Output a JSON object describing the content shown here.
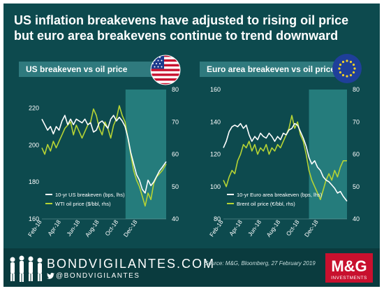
{
  "header": {
    "title_line1": "US inflation breakevens have adjusted to rising oil price",
    "title_line2": "but euro area breakevens continue to trend downward"
  },
  "footer": {
    "brand": "BONDVIGILANTES.COM",
    "handle": "@BONDVIGILANTES",
    "source": "Source: M&G, Bloomberg, 27 February 2019",
    "logo_text": "M&G",
    "logo_subtext": "INVESTMENTS"
  },
  "colors": {
    "background": "#0d4a4e",
    "footer": "#0a3b3e",
    "panel_bar": "#2f7a7e",
    "shade": "#2a8585",
    "breakeven_line": "#ffffff",
    "oil_line": "#b5d334",
    "logo_red": "#c8102e"
  },
  "icons": {
    "left_flag": "us-flag-icon",
    "right_flag": "eu-flag-icon",
    "footer_figures": "people-silhouettes-icon",
    "twitter": "twitter-icon"
  },
  "chart_data": [
    {
      "type": "line",
      "title": "US breakeven  vs oil price",
      "x_tick_labels": [
        "Feb-18",
        "Apr-18",
        "Jun-18",
        "Aug-18",
        "Oct-18",
        "Dec-18"
      ],
      "y_left": {
        "lim": [
          160,
          230
        ],
        "ticks": [
          160,
          180,
          200,
          220
        ]
      },
      "y_right": {
        "lim": [
          40,
          80
        ],
        "ticks": [
          40,
          50,
          60,
          70,
          80
        ]
      },
      "shaded_region": {
        "from_month": 8.75,
        "to_month": 13
      },
      "legend_placement": "bottom-left",
      "series": [
        {
          "name": "10-yr US breakeven (bps, lhs)",
          "axis": "left",
          "color": "#ffffff",
          "points": [
            [
              0,
              214
            ],
            [
              0.3,
              211
            ],
            [
              0.6,
              208
            ],
            [
              0.9,
              210
            ],
            [
              1.2,
              206
            ],
            [
              1.5,
              210
            ],
            [
              1.8,
              208
            ],
            [
              2.1,
              213
            ],
            [
              2.4,
              216
            ],
            [
              2.7,
              211
            ],
            [
              3,
              214
            ],
            [
              3.3,
              211
            ],
            [
              3.6,
              214
            ],
            [
              3.9,
              213
            ],
            [
              4.2,
              212
            ],
            [
              4.5,
              214
            ],
            [
              4.8,
              211
            ],
            [
              5.1,
              212
            ],
            [
              5.4,
              207
            ],
            [
              5.7,
              208
            ],
            [
              6,
              212
            ],
            [
              6.3,
              213
            ],
            [
              6.6,
              211
            ],
            [
              6.9,
              209
            ],
            [
              7.2,
              214
            ],
            [
              7.5,
              216
            ],
            [
              7.8,
              213
            ],
            [
              8.1,
              215
            ],
            [
              8.4,
              213
            ],
            [
              8.7,
              210
            ],
            [
              9,
              204
            ],
            [
              9.3,
              196
            ],
            [
              9.6,
              190
            ],
            [
              9.9,
              184
            ],
            [
              10.2,
              181
            ],
            [
              10.5,
              176
            ],
            [
              10.8,
              174
            ],
            [
              11.1,
              181
            ],
            [
              11.4,
              178
            ],
            [
              11.7,
              180
            ],
            [
              12,
              183
            ],
            [
              12.3,
              186
            ],
            [
              12.6,
              188
            ],
            [
              13,
              191
            ]
          ]
        },
        {
          "name": "WTI oil price ($/bbl, rhs)",
          "axis": "right",
          "color": "#b5d334",
          "points": [
            [
              0,
              62
            ],
            [
              0.3,
              60
            ],
            [
              0.6,
              63
            ],
            [
              0.9,
              61
            ],
            [
              1.2,
              64
            ],
            [
              1.5,
              62
            ],
            [
              1.8,
              64
            ],
            [
              2.1,
              66
            ],
            [
              2.4,
              68
            ],
            [
              2.7,
              69
            ],
            [
              3,
              70
            ],
            [
              3.3,
              66
            ],
            [
              3.6,
              69
            ],
            [
              3.9,
              67
            ],
            [
              4.2,
              65
            ],
            [
              4.5,
              67
            ],
            [
              4.8,
              69
            ],
            [
              5.1,
              70
            ],
            [
              5.4,
              74
            ],
            [
              5.7,
              72
            ],
            [
              6,
              68
            ],
            [
              6.3,
              66
            ],
            [
              6.6,
              70
            ],
            [
              6.9,
              68
            ],
            [
              7.2,
              65
            ],
            [
              7.5,
              69
            ],
            [
              7.8,
              71
            ],
            [
              8.1,
              75
            ],
            [
              8.4,
              72
            ],
            [
              8.7,
              70
            ],
            [
              9,
              65
            ],
            [
              9.3,
              60
            ],
            [
              9.6,
              55
            ],
            [
              9.9,
              52
            ],
            [
              10.2,
              50
            ],
            [
              10.5,
              47
            ],
            [
              10.8,
              44
            ],
            [
              11.1,
              48
            ],
            [
              11.4,
              46
            ],
            [
              11.7,
              51
            ],
            [
              12,
              53
            ],
            [
              12.3,
              54
            ],
            [
              12.6,
              55
            ],
            [
              13,
              57
            ]
          ]
        }
      ]
    },
    {
      "type": "line",
      "title": "Euro area breakeven  vs oil price",
      "x_tick_labels": [
        "Feb-18",
        "Apr-18",
        "Jun-18",
        "Aug-18",
        "Oct-18",
        "Dec-18"
      ],
      "y_left": {
        "lim": [
          80,
          160
        ],
        "ticks": [
          80,
          100,
          120,
          140,
          160
        ]
      },
      "y_right": {
        "lim": [
          40,
          80
        ],
        "ticks": [
          40,
          50,
          60,
          70,
          80
        ]
      },
      "shaded_region": {
        "from_month": 9.0,
        "to_month": 13
      },
      "legend_placement": "bottom-left",
      "series": [
        {
          "name": "10-yr Euro area breakeven (bps, lhs)",
          "axis": "left",
          "color": "#ffffff",
          "points": [
            [
              0,
              124
            ],
            [
              0.3,
              128
            ],
            [
              0.6,
              134
            ],
            [
              0.9,
              137
            ],
            [
              1.2,
              138
            ],
            [
              1.5,
              137
            ],
            [
              1.8,
              139
            ],
            [
              2.1,
              136
            ],
            [
              2.4,
              138
            ],
            [
              2.7,
              132
            ],
            [
              3,
              128
            ],
            [
              3.3,
              131
            ],
            [
              3.6,
              129
            ],
            [
              3.9,
              133
            ],
            [
              4.2,
              131
            ],
            [
              4.5,
              130
            ],
            [
              4.8,
              133
            ],
            [
              5.1,
              131
            ],
            [
              5.4,
              128
            ],
            [
              5.7,
              131
            ],
            [
              6,
              129
            ],
            [
              6.3,
              133
            ],
            [
              6.6,
              132
            ],
            [
              6.9,
              135
            ],
            [
              7.2,
              136
            ],
            [
              7.5,
              139
            ],
            [
              7.8,
              138
            ],
            [
              8.1,
              134
            ],
            [
              8.4,
              130
            ],
            [
              8.7,
              125
            ],
            [
              9,
              118
            ],
            [
              9.3,
              114
            ],
            [
              9.6,
              116
            ],
            [
              9.9,
              112
            ],
            [
              10.2,
              110
            ],
            [
              10.5,
              106
            ],
            [
              10.8,
              104
            ],
            [
              11.1,
              103
            ],
            [
              11.4,
              101
            ],
            [
              11.7,
              99
            ],
            [
              12,
              96
            ],
            [
              12.3,
              97
            ],
            [
              12.6,
              94
            ],
            [
              13,
              91
            ]
          ]
        },
        {
          "name": "Brent oil price (€/bbl, rhs)",
          "axis": "right",
          "color": "#b5d334",
          "points": [
            [
              0,
              52
            ],
            [
              0.3,
              50
            ],
            [
              0.6,
              53
            ],
            [
              0.9,
              55
            ],
            [
              1.2,
              54
            ],
            [
              1.5,
              58
            ],
            [
              1.8,
              60
            ],
            [
              2.1,
              63
            ],
            [
              2.4,
              62
            ],
            [
              2.7,
              64
            ],
            [
              3,
              61
            ],
            [
              3.3,
              63
            ],
            [
              3.6,
              60
            ],
            [
              3.9,
              62
            ],
            [
              4.2,
              61
            ],
            [
              4.5,
              63
            ],
            [
              4.8,
              60
            ],
            [
              5.1,
              62
            ],
            [
              5.4,
              61
            ],
            [
              5.7,
              63
            ],
            [
              6,
              62
            ],
            [
              6.3,
              64
            ],
            [
              6.6,
              66
            ],
            [
              6.9,
              68
            ],
            [
              7.2,
              72
            ],
            [
              7.5,
              68
            ],
            [
              7.8,
              70
            ],
            [
              8.1,
              66
            ],
            [
              8.4,
              64
            ],
            [
              8.7,
              60
            ],
            [
              9,
              55
            ],
            [
              9.3,
              52
            ],
            [
              9.6,
              50
            ],
            [
              9.9,
              48
            ],
            [
              10.2,
              46
            ],
            [
              10.5,
              49
            ],
            [
              10.8,
              52
            ],
            [
              11.1,
              54
            ],
            [
              11.4,
              52
            ],
            [
              11.7,
              55
            ],
            [
              12,
              53
            ],
            [
              12.3,
              56
            ],
            [
              12.6,
              58
            ],
            [
              13,
              58
            ]
          ]
        }
      ]
    }
  ]
}
